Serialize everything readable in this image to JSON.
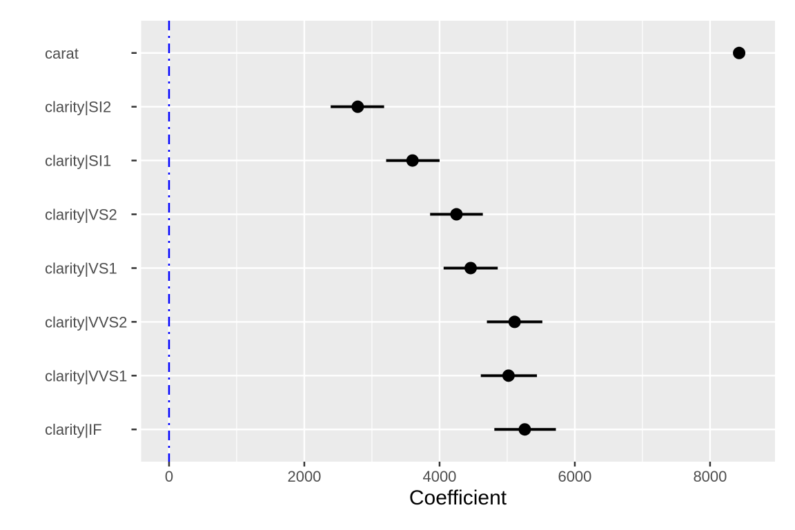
{
  "chart_data": {
    "type": "scatter",
    "subtype": "coefficient-dot-whisker",
    "title": "",
    "xlabel": "Coefficient",
    "ylabel": "",
    "x_ticks": [
      0,
      2000,
      4000,
      6000,
      8000
    ],
    "x_minor_ticks": [
      1000,
      3000,
      5000,
      7000
    ],
    "xlim": [
      -413,
      8960
    ],
    "grid": "on",
    "legend": "none",
    "reference_line": {
      "x": 0,
      "style": "dotdash",
      "color": "#0000FF"
    },
    "terms": [
      {
        "label": "carat",
        "estimate": 8430,
        "ci_low": 8380,
        "ci_high": 8480
      },
      {
        "label": "clarity|SI2",
        "estimate": 2790,
        "ci_low": 2390,
        "ci_high": 3180
      },
      {
        "label": "clarity|SI1",
        "estimate": 3600,
        "ci_low": 3210,
        "ci_high": 4000
      },
      {
        "label": "clarity|VS2",
        "estimate": 4250,
        "ci_low": 3860,
        "ci_high": 4640
      },
      {
        "label": "clarity|VS1",
        "estimate": 4460,
        "ci_low": 4060,
        "ci_high": 4860
      },
      {
        "label": "clarity|VVS2",
        "estimate": 5110,
        "ci_low": 4700,
        "ci_high": 5520
      },
      {
        "label": "clarity|VVS1",
        "estimate": 5020,
        "ci_low": 4610,
        "ci_high": 5440
      },
      {
        "label": "clarity|IF",
        "estimate": 5260,
        "ci_low": 4810,
        "ci_high": 5720
      }
    ],
    "colors": {
      "figure_background": "#FFFFFF",
      "panel_background": "#EBEBEB",
      "grid_major": "#FFFFFF",
      "grid_minor": "#FFFFFF",
      "point": "#000000",
      "error_bar": "#000000",
      "reference_line": "#0000FF",
      "tick_mark": "#333333",
      "tick_label": "#4D4D4D",
      "axis_title": "#000000"
    }
  }
}
